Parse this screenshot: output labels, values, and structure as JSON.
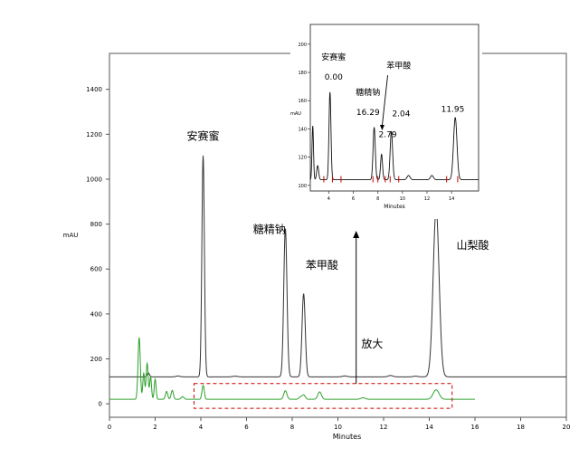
{
  "chart_data": {
    "type": "line",
    "main": {
      "xlabel": "Minutes",
      "ylabel": "mAU",
      "xlim": [
        0,
        20
      ],
      "ylim": [
        -60,
        1560
      ],
      "x_ticks": [
        0,
        2,
        4,
        6,
        8,
        10,
        12,
        14,
        16,
        18,
        20
      ],
      "y_ticks": [
        0,
        200,
        400,
        600,
        800,
        1000,
        1200,
        1400
      ],
      "series": [
        {
          "color": "#333333",
          "baseline": 120,
          "x_end": 20,
          "peaks": [
            {
              "x": 4.1,
              "height": 985,
              "width": 0.055
            },
            {
              "x": 7.7,
              "height": 660,
              "width": 0.07
            },
            {
              "x": 8.5,
              "height": 370,
              "width": 0.07
            },
            {
              "x": 14.3,
              "height": 745,
              "width": 0.13
            },
            {
              "x": 1.7,
              "height": 18,
              "width": 0.05
            },
            {
              "x": 3.0,
              "height": 4,
              "width": 0.08
            },
            {
              "x": 5.5,
              "height": 3,
              "width": 0.1
            },
            {
              "x": 10.3,
              "height": 4,
              "width": 0.1
            },
            {
              "x": 12.3,
              "height": 6,
              "width": 0.1
            },
            {
              "x": 13.4,
              "height": 3,
              "width": 0.1
            }
          ]
        },
        {
          "color": "#2ca02c",
          "baseline": 20,
          "x_end": 16,
          "peaks": [
            {
              "x": 1.3,
              "height": 275,
              "width": 0.05
            },
            {
              "x": 1.5,
              "height": 115,
              "width": 0.04
            },
            {
              "x": 1.65,
              "height": 160,
              "width": 0.045
            },
            {
              "x": 1.8,
              "height": 100,
              "width": 0.04
            },
            {
              "x": 2.0,
              "height": 90,
              "width": 0.04
            },
            {
              "x": 2.5,
              "height": 35,
              "width": 0.05
            },
            {
              "x": 2.75,
              "height": 40,
              "width": 0.05
            },
            {
              "x": 3.2,
              "height": 12,
              "width": 0.06
            },
            {
              "x": 4.1,
              "height": 62,
              "width": 0.05
            },
            {
              "x": 7.7,
              "height": 38,
              "width": 0.07
            },
            {
              "x": 8.35,
              "height": 10,
              "width": 0.06
            },
            {
              "x": 8.5,
              "height": 20,
              "width": 0.07
            },
            {
              "x": 9.2,
              "height": 33,
              "width": 0.08
            },
            {
              "x": 11.1,
              "height": 7,
              "width": 0.1
            },
            {
              "x": 14.3,
              "height": 42,
              "width": 0.13
            }
          ]
        }
      ],
      "annotations": [
        {
          "text": "安赛蜜",
          "x": 4.1,
          "y": 1175
        },
        {
          "text": "糖精钠",
          "x": 7.0,
          "y": 760
        },
        {
          "text": "苯甲酸",
          "x": 9.3,
          "y": 600
        },
        {
          "text": "山梨酸",
          "x": 15.9,
          "y": 690
        },
        {
          "text": "放大",
          "x": 11.5,
          "y": 250
        }
      ],
      "zoom_box": {
        "x": [
          3.7,
          15.0
        ],
        "y": [
          -20,
          90
        ],
        "color": "#cc0000"
      },
      "arrow": {
        "x": 10.8,
        "y_from": 90,
        "y_to": 770
      }
    },
    "inset": {
      "xlabel": "Minutes",
      "ylabel": "mAU",
      "xlim": [
        2.5,
        16.2
      ],
      "ylim": [
        96,
        214
      ],
      "x_ticks": [
        4,
        6,
        8,
        10,
        12,
        14
      ],
      "y_ticks": [
        100,
        120,
        140,
        160,
        180,
        200
      ],
      "series": [
        {
          "color": "#111111",
          "baseline": 104,
          "peaks": [
            {
              "x": 2.7,
              "height": 38,
              "width": 0.06
            },
            {
              "x": 3.1,
              "height": 10,
              "width": 0.08
            },
            {
              "x": 4.1,
              "height": 62,
              "width": 0.08
            },
            {
              "x": 7.7,
              "height": 37,
              "width": 0.09
            },
            {
              "x": 8.3,
              "height": 18,
              "width": 0.08
            },
            {
              "x": 9.1,
              "height": 34,
              "width": 0.1
            },
            {
              "x": 10.5,
              "height": 3,
              "width": 0.12
            },
            {
              "x": 12.4,
              "height": 3,
              "width": 0.12
            },
            {
              "x": 14.3,
              "height": 44,
              "width": 0.14
            }
          ]
        }
      ],
      "markers_x": [
        3.6,
        4.3,
        5.0,
        7.6,
        8.0,
        8.6,
        9.0,
        9.7,
        13.6,
        14.5
      ],
      "marker_color": "#cc0000",
      "annotations": [
        {
          "text": "安赛蜜",
          "x": 4.4,
          "y": 189
        },
        {
          "text": "0.00",
          "x": 4.4,
          "y": 175
        },
        {
          "text": "苯甲酸",
          "x": 9.7,
          "y": 183
        },
        {
          "text": "糖精钠",
          "x": 7.2,
          "y": 164
        },
        {
          "text": "16.29",
          "x": 7.2,
          "y": 150
        },
        {
          "text": "2.04",
          "x": 9.9,
          "y": 149
        },
        {
          "text": "2.79",
          "x": 8.8,
          "y": 134
        },
        {
          "text": "11.95",
          "x": 14.1,
          "y": 152
        }
      ],
      "arrow": {
        "x_from": 8.8,
        "y_from": 178,
        "x_to": 8.35,
        "y_to": 139
      }
    }
  }
}
